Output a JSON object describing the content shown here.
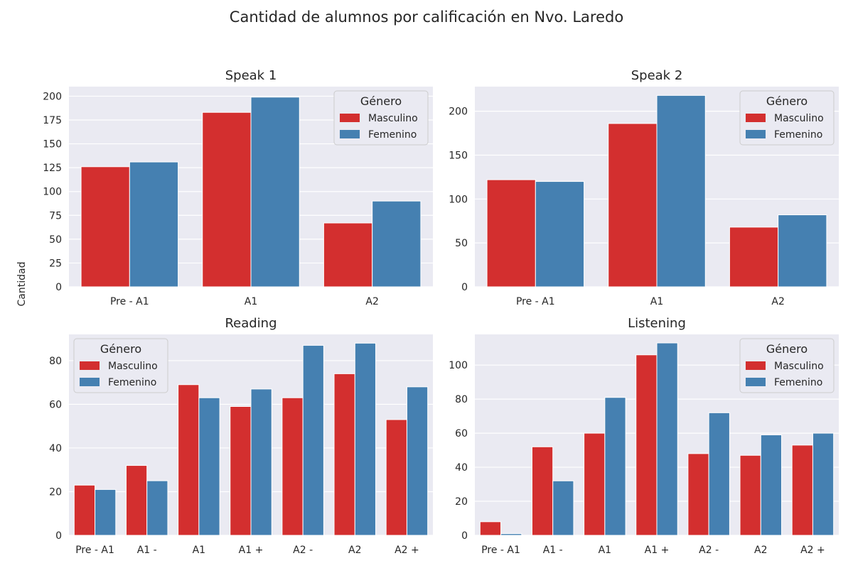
{
  "figure": {
    "title": "Cantidad de alumnos por calificación en Nvo. Laredo",
    "ylabel": "Cantidad"
  },
  "colors": {
    "Masculino": "#d32f2f",
    "Femenino": "#4580b1",
    "background": "#eaeaf2",
    "grid": "#ffffff"
  },
  "chart_data": [
    {
      "type": "bar",
      "title": "Speak 1",
      "categories": [
        "Pre - A1",
        "A1",
        "A2"
      ],
      "series": [
        {
          "name": "Masculino",
          "values": [
            126,
            183,
            67
          ]
        },
        {
          "name": "Femenino",
          "values": [
            131,
            199,
            90
          ]
        }
      ],
      "ylim": [
        0,
        210
      ],
      "yticks": [
        0,
        25,
        50,
        75,
        100,
        125,
        150,
        175,
        200
      ],
      "legend": {
        "title": "Género",
        "position": "top-right"
      },
      "grid": true
    },
    {
      "type": "bar",
      "title": "Speak 2",
      "categories": [
        "Pre - A1",
        "A1",
        "A2"
      ],
      "series": [
        {
          "name": "Masculino",
          "values": [
            122,
            186,
            68
          ]
        },
        {
          "name": "Femenino",
          "values": [
            120,
            218,
            82
          ]
        }
      ],
      "ylim": [
        0,
        228
      ],
      "yticks": [
        0,
        50,
        100,
        150,
        200
      ],
      "legend": {
        "title": "Género",
        "position": "top-right"
      },
      "grid": true
    },
    {
      "type": "bar",
      "title": "Reading",
      "categories": [
        "Pre - A1",
        "A1 -",
        "A1",
        "A1 +",
        "A2 -",
        "A2",
        "A2 +"
      ],
      "series": [
        {
          "name": "Masculino",
          "values": [
            23,
            32,
            69,
            59,
            63,
            74,
            53
          ]
        },
        {
          "name": "Femenino",
          "values": [
            21,
            25,
            63,
            67,
            87,
            88,
            68
          ]
        }
      ],
      "ylim": [
        0,
        92
      ],
      "yticks": [
        0,
        20,
        40,
        60,
        80
      ],
      "legend": {
        "title": "Género",
        "position": "top-left"
      },
      "grid": true
    },
    {
      "type": "bar",
      "title": "Listening",
      "categories": [
        "Pre - A1",
        "A1 -",
        "A1",
        "A1 +",
        "A2 -",
        "A2",
        "A2 +"
      ],
      "series": [
        {
          "name": "Masculino",
          "values": [
            8,
            52,
            60,
            106,
            48,
            47,
            53
          ]
        },
        {
          "name": "Femenino",
          "values": [
            1,
            32,
            81,
            113,
            72,
            59,
            60
          ]
        }
      ],
      "ylim": [
        0,
        118
      ],
      "yticks": [
        0,
        20,
        40,
        60,
        80,
        100
      ],
      "legend": {
        "title": "Género",
        "position": "top-right"
      },
      "grid": true
    }
  ]
}
